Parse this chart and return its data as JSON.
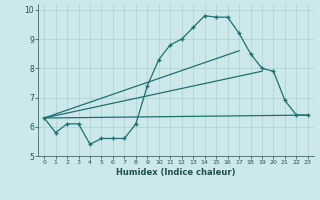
{
  "xlabel": "Humidex (Indice chaleur)",
  "xlim": [
    -0.5,
    23.5
  ],
  "ylim": [
    5,
    10.2
  ],
  "yticks": [
    5,
    6,
    7,
    8,
    9,
    10
  ],
  "xticks": [
    0,
    1,
    2,
    3,
    4,
    5,
    6,
    7,
    8,
    9,
    10,
    11,
    12,
    13,
    14,
    15,
    16,
    17,
    18,
    19,
    20,
    21,
    22,
    23
  ],
  "bg_color": "#cce8ea",
  "grid_color": "#b0d4d8",
  "line_color": "#1e7070",
  "series": {
    "main_curve": {
      "x": [
        0,
        1,
        2,
        3,
        4,
        5,
        6,
        7,
        8,
        9,
        10,
        11,
        12,
        13,
        14,
        15,
        16,
        17,
        18,
        19,
        20,
        21,
        22,
        23
      ],
      "y": [
        6.3,
        5.8,
        6.1,
        6.1,
        5.4,
        5.6,
        5.6,
        5.6,
        6.1,
        7.4,
        8.3,
        8.8,
        9.0,
        9.4,
        9.8,
        9.75,
        9.75,
        9.2,
        8.5,
        8.0,
        7.9,
        6.9,
        6.4,
        6.4
      ]
    },
    "line1": {
      "x": [
        0,
        23
      ],
      "y": [
        6.3,
        6.4
      ]
    },
    "line2": {
      "x": [
        0,
        19
      ],
      "y": [
        6.3,
        7.9
      ]
    },
    "line3": {
      "x": [
        0,
        17
      ],
      "y": [
        6.3,
        8.6
      ]
    }
  }
}
